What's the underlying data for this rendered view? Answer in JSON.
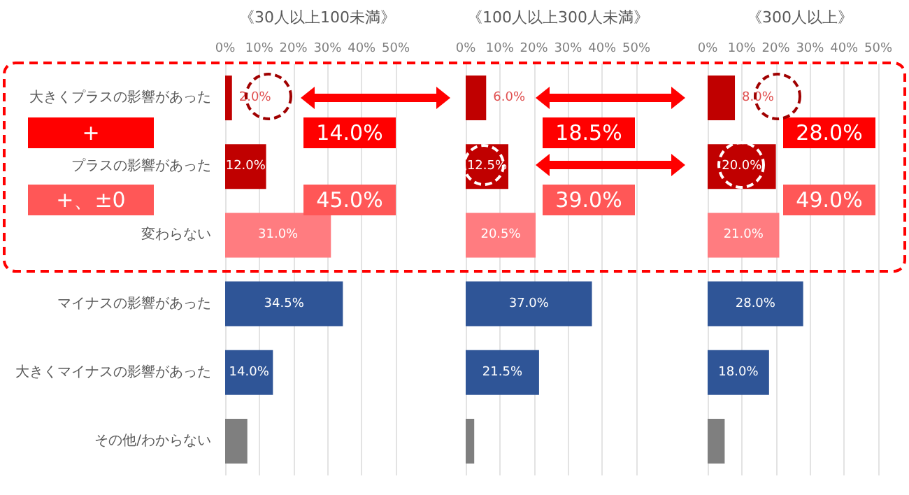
{
  "chart_data": [
    {
      "type": "bar",
      "orientation": "horizontal",
      "title": "《30人以上100未満》",
      "categories": [
        "大きくプラスの影響があった",
        "プラスの影響があった",
        "変わらない",
        "マイナスの影響があった",
        "大きくマイナスの影響があった",
        "その他/わからない"
      ],
      "values": [
        2.0,
        12.0,
        31.0,
        34.5,
        14.0,
        6.5
      ],
      "value_labels": [
        "2.0%",
        "12.0%",
        "31.0%",
        "34.5%",
        "14.0%",
        null
      ],
      "colors": [
        "#c00000",
        "#c00000",
        "#ff7c80",
        "#2f5597",
        "#2f5597",
        "#7f7f7f"
      ],
      "xlim": [
        0,
        50
      ],
      "xticks": [
        {
          "value": 0,
          "label": "0%"
        },
        {
          "value": 10,
          "label": "10%"
        },
        {
          "value": 20,
          "label": "20%"
        },
        {
          "value": 30,
          "label": "30%"
        },
        {
          "value": 40,
          "label": "40%"
        },
        {
          "value": 50,
          "label": "50%"
        }
      ],
      "grid": "x",
      "annotations": [
        "+",
        "+、±0",
        "14.0%",
        "45.0%"
      ]
    },
    {
      "type": "bar",
      "orientation": "horizontal",
      "title": "《100人以上300人未満》",
      "categories": [
        null,
        null,
        null,
        null,
        null,
        null
      ],
      "values": [
        6.0,
        12.5,
        20.5,
        37.0,
        21.5,
        2.5
      ],
      "value_labels": [
        "6.0%",
        "12.5%",
        "20.5%",
        "37.0%",
        "21.5%",
        null
      ],
      "colors": [
        "#c00000",
        "#c00000",
        "#ff7c80",
        "#2f5597",
        "#2f5597",
        "#7f7f7f"
      ],
      "xlim": [
        0,
        50
      ],
      "xticks": [
        {
          "value": 0,
          "label": "0%"
        },
        {
          "value": 10,
          "label": "10%"
        },
        {
          "value": 20,
          "label": "20%"
        },
        {
          "value": 30,
          "label": "30%"
        },
        {
          "value": 40,
          "label": "40%"
        },
        {
          "value": 50,
          "label": "50%"
        }
      ],
      "grid": "x",
      "tick_labels": "x",
      "annotations": [
        "18.5%",
        "39.0%"
      ]
    },
    {
      "type": "bar",
      "orientation": "horizontal",
      "title": "《300人以上》",
      "categories": [
        null,
        null,
        null,
        null,
        null,
        null
      ],
      "values": [
        8.0,
        20.0,
        21.0,
        28.0,
        18.0,
        5.0
      ],
      "value_labels": [
        "8.0%",
        "20.0%",
        "21.0%",
        "28.0%",
        "18.0%",
        null
      ],
      "colors": [
        "#c00000",
        "#c00000",
        "#ff7c80",
        "#2f5597",
        "#2f5597",
        "#7f7f7f"
      ],
      "xlim": [
        0,
        50
      ],
      "xticks": [
        {
          "value": 0,
          "label": "0%"
        },
        {
          "value": 10,
          "label": "10%"
        },
        {
          "value": 20,
          "label": "20%"
        },
        {
          "value": 30,
          "label": "30%"
        },
        {
          "value": 40,
          "label": "40%"
        },
        {
          "value": 50,
          "label": "50%"
        }
      ],
      "grid": "x",
      "tick_labels": "x",
      "annotations": [
        "28.0%",
        "49.0%"
      ]
    }
  ]
}
